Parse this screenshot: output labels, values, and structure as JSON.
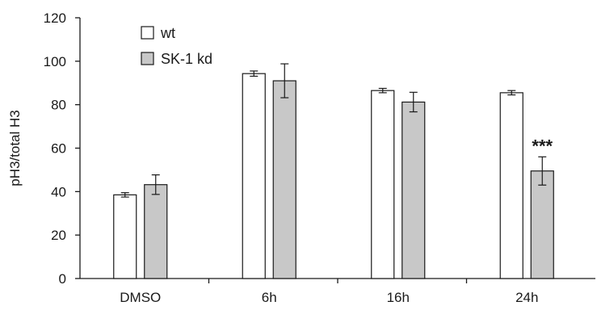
{
  "chart_data": {
    "type": "bar",
    "categories": [
      "DMSO",
      "6h",
      "16h",
      "24h"
    ],
    "series": [
      {
        "name": "wt",
        "values": [
          38.5,
          94.3,
          86.5,
          85.5
        ],
        "errors": [
          1.0,
          1.2,
          1.0,
          1.0
        ],
        "color": "#ffffff"
      },
      {
        "name": "SK-1 kd",
        "values": [
          43.2,
          91.0,
          81.2,
          49.5
        ],
        "errors": [
          4.5,
          7.8,
          4.5,
          6.5
        ],
        "color": "#c8c8c8"
      }
    ],
    "ylabel": "pH3/total H3",
    "ylim": [
      0,
      120
    ],
    "yticks": [
      "0",
      "20",
      "40",
      "60",
      "80",
      "100",
      "120"
    ],
    "legend_position": "top-left",
    "grid": false,
    "annotations": [
      {
        "category": "24h",
        "series": "SK-1 kd",
        "text": "***"
      }
    ]
  }
}
